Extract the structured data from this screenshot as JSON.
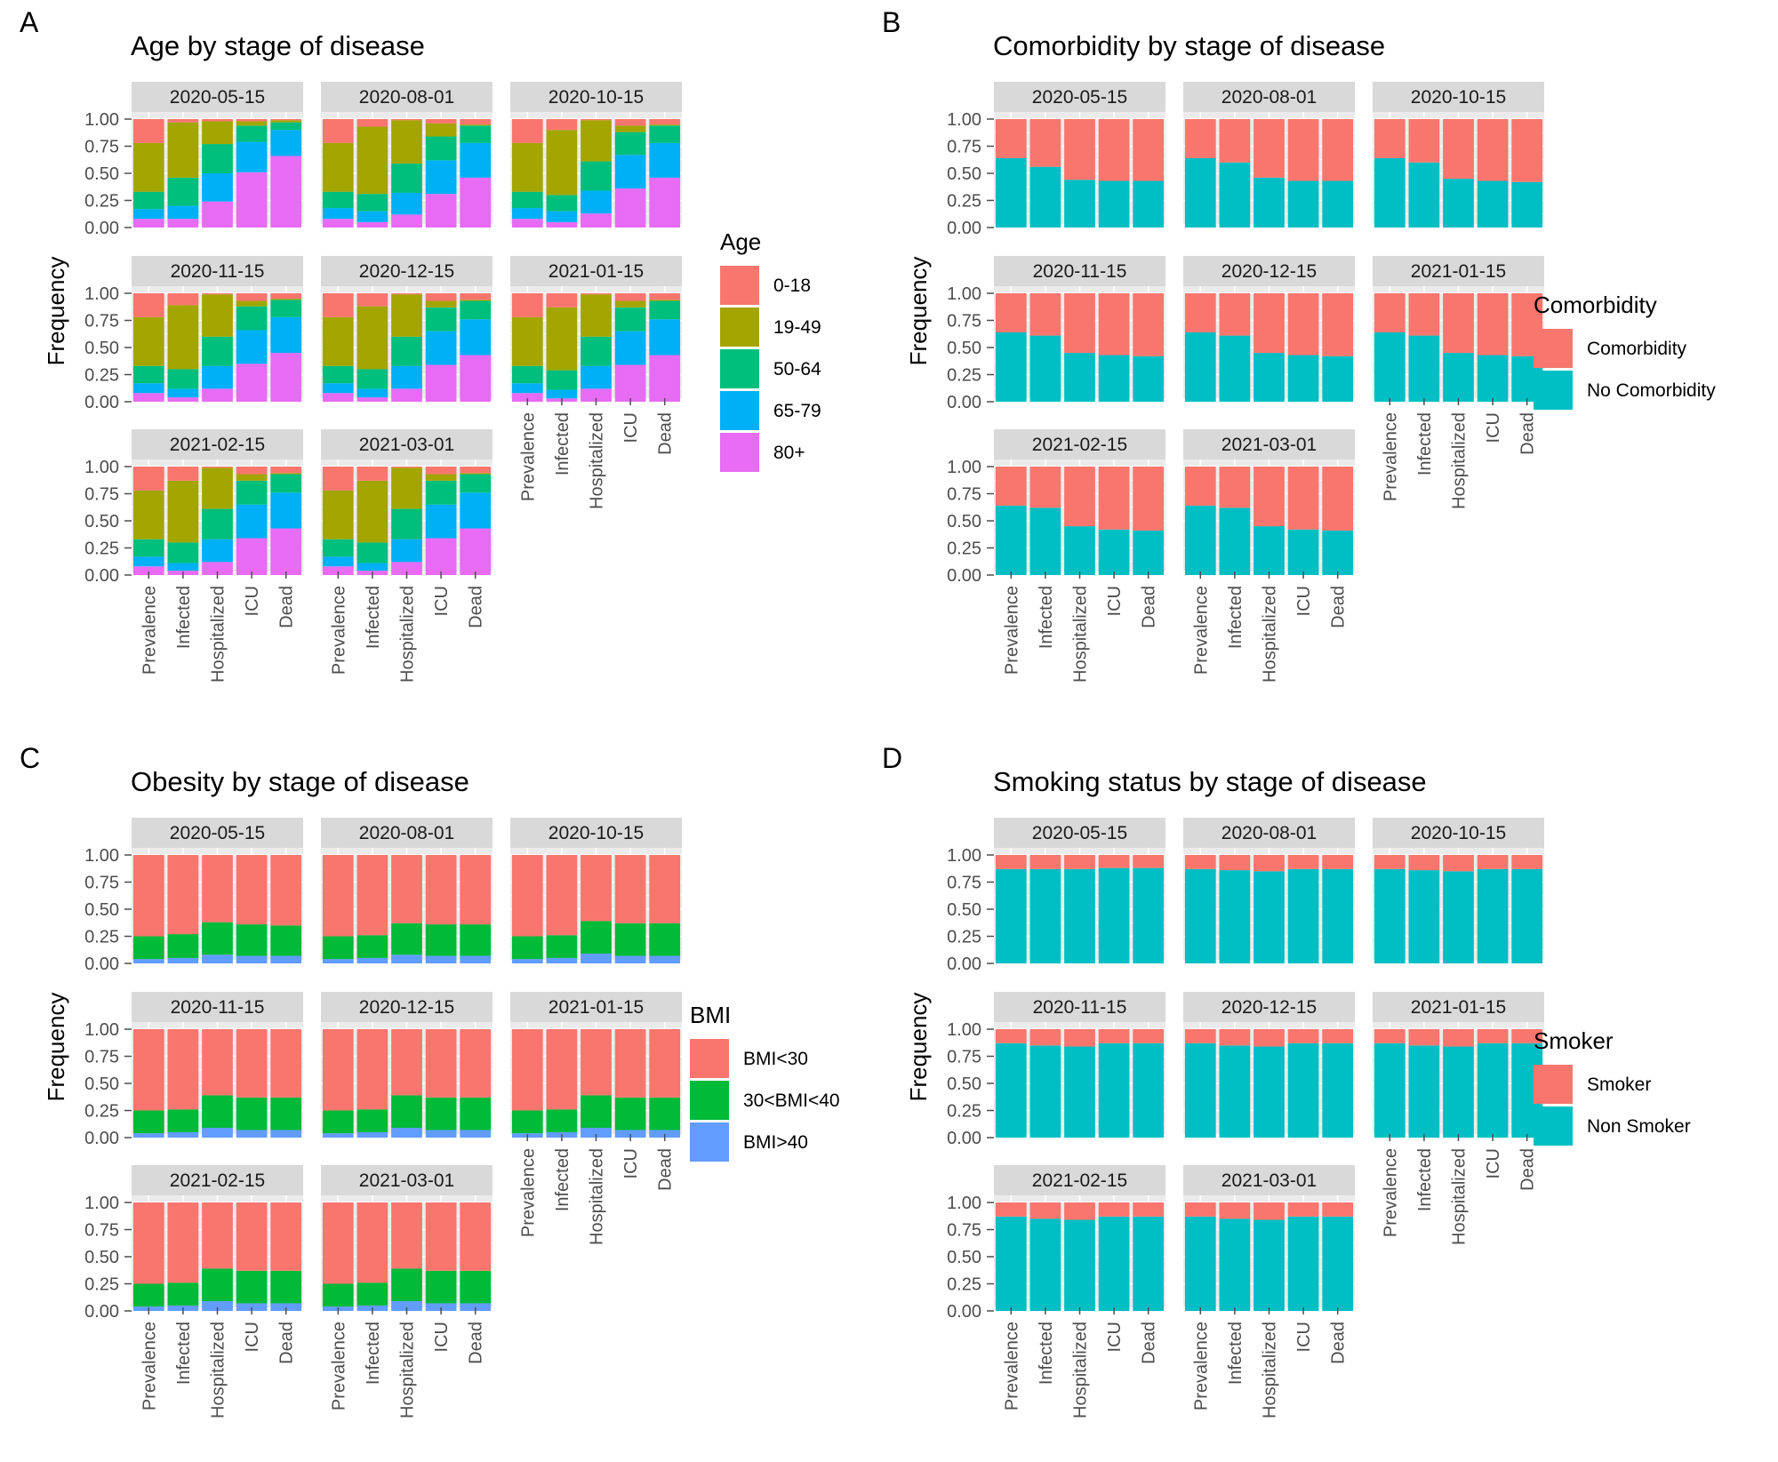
{
  "figure": {
    "ytick_labels": [
      "0.00",
      "0.25",
      "0.50",
      "0.75",
      "1.00"
    ],
    "strip_color": "#d9d9d9",
    "panel_bg": "#ebebeb"
  },
  "chart_data": [
    {
      "letter": "A",
      "type": "bar",
      "stacked": true,
      "title": "Age by stage of disease",
      "xlabel": "",
      "ylabel": "Frequency",
      "ylim": [
        0,
        1
      ],
      "grid": true,
      "legend_position": "right",
      "legend_title": "Age",
      "categories": [
        "Prevalence",
        "Infected",
        "Hospitalized",
        "ICU",
        "Dead"
      ],
      "series": [
        {
          "name": "0-18",
          "color": "#F8766D"
        },
        {
          "name": "19-49",
          "color": "#A3A500"
        },
        {
          "name": "50-64",
          "color": "#00BF7D"
        },
        {
          "name": "65-79",
          "color": "#00B0F6"
        },
        {
          "name": "80+",
          "color": "#E76BF3"
        }
      ],
      "facets": [
        {
          "date": "2020-05-15",
          "stacks": [
            [
              0.08,
              0.09,
              0.16,
              0.45,
              0.22
            ],
            [
              0.08,
              0.12,
              0.26,
              0.51,
              0.03
            ],
            [
              0.24,
              0.26,
              0.27,
              0.21,
              0.02
            ],
            [
              0.51,
              0.28,
              0.15,
              0.04,
              0.02
            ],
            [
              0.66,
              0.24,
              0.07,
              0.02,
              0.01
            ]
          ]
        },
        {
          "date": "2020-08-01",
          "stacks": [
            [
              0.08,
              0.1,
              0.15,
              0.45,
              0.22
            ],
            [
              0.05,
              0.1,
              0.16,
              0.62,
              0.07
            ],
            [
              0.12,
              0.2,
              0.27,
              0.4,
              0.01
            ],
            [
              0.31,
              0.31,
              0.22,
              0.12,
              0.04
            ],
            [
              0.46,
              0.32,
              0.16,
              0.01,
              0.05
            ]
          ]
        },
        {
          "date": "2020-10-15",
          "stacks": [
            [
              0.08,
              0.1,
              0.15,
              0.45,
              0.22
            ],
            [
              0.05,
              0.1,
              0.15,
              0.6,
              0.1
            ],
            [
              0.13,
              0.21,
              0.27,
              0.38,
              0.01
            ],
            [
              0.36,
              0.31,
              0.21,
              0.06,
              0.06
            ],
            [
              0.46,
              0.32,
              0.16,
              0.01,
              0.05
            ]
          ]
        },
        {
          "date": "2020-11-15",
          "stacks": [
            [
              0.08,
              0.09,
              0.16,
              0.45,
              0.22
            ],
            [
              0.04,
              0.08,
              0.18,
              0.59,
              0.11
            ],
            [
              0.12,
              0.21,
              0.27,
              0.39,
              0.01
            ],
            [
              0.35,
              0.31,
              0.22,
              0.05,
              0.07
            ],
            [
              0.45,
              0.33,
              0.16,
              0.01,
              0.05
            ]
          ]
        },
        {
          "date": "2020-12-15",
          "stacks": [
            [
              0.08,
              0.09,
              0.16,
              0.45,
              0.22
            ],
            [
              0.04,
              0.08,
              0.18,
              0.58,
              0.12
            ],
            [
              0.12,
              0.21,
              0.27,
              0.39,
              0.01
            ],
            [
              0.34,
              0.31,
              0.22,
              0.06,
              0.07
            ],
            [
              0.43,
              0.33,
              0.17,
              0.01,
              0.06
            ]
          ]
        },
        {
          "date": "2021-01-15",
          "stacks": [
            [
              0.08,
              0.09,
              0.16,
              0.45,
              0.22
            ],
            [
              0.03,
              0.08,
              0.18,
              0.58,
              0.13
            ],
            [
              0.12,
              0.21,
              0.27,
              0.39,
              0.01
            ],
            [
              0.34,
              0.31,
              0.22,
              0.06,
              0.07
            ],
            [
              0.43,
              0.33,
              0.17,
              0.01,
              0.06
            ]
          ]
        },
        {
          "date": "2021-02-15",
          "stacks": [
            [
              0.08,
              0.09,
              0.16,
              0.45,
              0.22
            ],
            [
              0.04,
              0.07,
              0.19,
              0.57,
              0.13
            ],
            [
              0.12,
              0.21,
              0.28,
              0.38,
              0.01
            ],
            [
              0.34,
              0.31,
              0.22,
              0.06,
              0.07
            ],
            [
              0.43,
              0.33,
              0.17,
              0.01,
              0.06
            ]
          ]
        },
        {
          "date": "2021-03-01",
          "stacks": [
            [
              0.08,
              0.09,
              0.16,
              0.45,
              0.22
            ],
            [
              0.04,
              0.07,
              0.19,
              0.57,
              0.13
            ],
            [
              0.12,
              0.21,
              0.28,
              0.38,
              0.01
            ],
            [
              0.34,
              0.31,
              0.22,
              0.06,
              0.07
            ],
            [
              0.43,
              0.33,
              0.17,
              0.01,
              0.06
            ]
          ]
        }
      ]
    },
    {
      "letter": "B",
      "type": "bar",
      "stacked": true,
      "title": "Comorbidity by stage of disease",
      "xlabel": "",
      "ylabel": "Frequency",
      "ylim": [
        0,
        1
      ],
      "grid": true,
      "legend_position": "right",
      "legend_title": "Comorbidity",
      "categories": [
        "Prevalence",
        "Infected",
        "Hospitalized",
        "ICU",
        "Dead"
      ],
      "series": [
        {
          "name": "Comorbidity",
          "color": "#F8766D"
        },
        {
          "name": "No Comorbidity",
          "color": "#00BFC4"
        }
      ],
      "facets": [
        {
          "date": "2020-05-15",
          "stacks": [
            [
              0.64,
              0.36
            ],
            [
              0.56,
              0.44
            ],
            [
              0.44,
              0.56
            ],
            [
              0.43,
              0.57
            ],
            [
              0.43,
              0.57
            ]
          ]
        },
        {
          "date": "2020-08-01",
          "stacks": [
            [
              0.64,
              0.36
            ],
            [
              0.6,
              0.4
            ],
            [
              0.46,
              0.54
            ],
            [
              0.43,
              0.57
            ],
            [
              0.43,
              0.57
            ]
          ]
        },
        {
          "date": "2020-10-15",
          "stacks": [
            [
              0.64,
              0.36
            ],
            [
              0.6,
              0.4
            ],
            [
              0.45,
              0.55
            ],
            [
              0.43,
              0.57
            ],
            [
              0.42,
              0.58
            ]
          ]
        },
        {
          "date": "2020-11-15",
          "stacks": [
            [
              0.64,
              0.36
            ],
            [
              0.61,
              0.39
            ],
            [
              0.45,
              0.55
            ],
            [
              0.43,
              0.57
            ],
            [
              0.42,
              0.58
            ]
          ]
        },
        {
          "date": "2020-12-15",
          "stacks": [
            [
              0.64,
              0.36
            ],
            [
              0.61,
              0.39
            ],
            [
              0.45,
              0.55
            ],
            [
              0.43,
              0.57
            ],
            [
              0.42,
              0.58
            ]
          ]
        },
        {
          "date": "2021-01-15",
          "stacks": [
            [
              0.64,
              0.36
            ],
            [
              0.61,
              0.39
            ],
            [
              0.45,
              0.55
            ],
            [
              0.43,
              0.57
            ],
            [
              0.42,
              0.58
            ]
          ]
        },
        {
          "date": "2021-02-15",
          "stacks": [
            [
              0.64,
              0.36
            ],
            [
              0.62,
              0.38
            ],
            [
              0.45,
              0.55
            ],
            [
              0.42,
              0.58
            ],
            [
              0.41,
              0.59
            ]
          ]
        },
        {
          "date": "2021-03-01",
          "stacks": [
            [
              0.64,
              0.36
            ],
            [
              0.62,
              0.38
            ],
            [
              0.45,
              0.55
            ],
            [
              0.42,
              0.58
            ],
            [
              0.41,
              0.59
            ]
          ]
        }
      ]
    },
    {
      "letter": "C",
      "type": "bar",
      "stacked": true,
      "title": "Obesity by stage of disease",
      "xlabel": "",
      "ylabel": "Frequency",
      "ylim": [
        0,
        1
      ],
      "grid": true,
      "legend_position": "right",
      "legend_title": "BMI",
      "categories": [
        "Prevalence",
        "Infected",
        "Hospitalized",
        "ICU",
        "Dead"
      ],
      "series": [
        {
          "name": "BMI<30",
          "color": "#F8766D"
        },
        {
          "name": "30<BMI<40",
          "color": "#00BA38"
        },
        {
          "name": "BMI>40",
          "color": "#619CFF"
        }
      ],
      "facets": [
        {
          "date": "2020-05-15",
          "stacks": [
            [
              0.04,
              0.21,
              0.75
            ],
            [
              0.05,
              0.22,
              0.73
            ],
            [
              0.08,
              0.3,
              0.62
            ],
            [
              0.07,
              0.29,
              0.64
            ],
            [
              0.07,
              0.28,
              0.65
            ]
          ]
        },
        {
          "date": "2020-08-01",
          "stacks": [
            [
              0.04,
              0.21,
              0.75
            ],
            [
              0.05,
              0.21,
              0.74
            ],
            [
              0.08,
              0.29,
              0.63
            ],
            [
              0.07,
              0.29,
              0.64
            ],
            [
              0.07,
              0.29,
              0.64
            ]
          ]
        },
        {
          "date": "2020-10-15",
          "stacks": [
            [
              0.04,
              0.21,
              0.75
            ],
            [
              0.05,
              0.21,
              0.74
            ],
            [
              0.09,
              0.3,
              0.61
            ],
            [
              0.07,
              0.3,
              0.63
            ],
            [
              0.07,
              0.3,
              0.63
            ]
          ]
        },
        {
          "date": "2020-11-15",
          "stacks": [
            [
              0.04,
              0.21,
              0.75
            ],
            [
              0.05,
              0.21,
              0.74
            ],
            [
              0.09,
              0.3,
              0.61
            ],
            [
              0.07,
              0.3,
              0.63
            ],
            [
              0.07,
              0.3,
              0.63
            ]
          ]
        },
        {
          "date": "2020-12-15",
          "stacks": [
            [
              0.04,
              0.21,
              0.75
            ],
            [
              0.05,
              0.21,
              0.74
            ],
            [
              0.09,
              0.3,
              0.61
            ],
            [
              0.07,
              0.3,
              0.63
            ],
            [
              0.07,
              0.3,
              0.63
            ]
          ]
        },
        {
          "date": "2021-01-15",
          "stacks": [
            [
              0.04,
              0.21,
              0.75
            ],
            [
              0.05,
              0.21,
              0.74
            ],
            [
              0.09,
              0.3,
              0.61
            ],
            [
              0.07,
              0.3,
              0.63
            ],
            [
              0.07,
              0.3,
              0.63
            ]
          ]
        },
        {
          "date": "2021-02-15",
          "stacks": [
            [
              0.04,
              0.21,
              0.75
            ],
            [
              0.05,
              0.21,
              0.74
            ],
            [
              0.09,
              0.3,
              0.61
            ],
            [
              0.07,
              0.3,
              0.63
            ],
            [
              0.07,
              0.3,
              0.63
            ]
          ]
        },
        {
          "date": "2021-03-01",
          "stacks": [
            [
              0.04,
              0.21,
              0.75
            ],
            [
              0.05,
              0.21,
              0.74
            ],
            [
              0.09,
              0.3,
              0.61
            ],
            [
              0.07,
              0.3,
              0.63
            ],
            [
              0.07,
              0.3,
              0.63
            ]
          ]
        }
      ]
    },
    {
      "letter": "D",
      "type": "bar",
      "stacked": true,
      "title": "Smoking status by stage of disease",
      "xlabel": "",
      "ylabel": "Frequency",
      "ylim": [
        0,
        1
      ],
      "grid": true,
      "legend_position": "right",
      "legend_title": "Smoker",
      "categories": [
        "Prevalence",
        "Infected",
        "Hospitalized",
        "ICU",
        "Dead"
      ],
      "series": [
        {
          "name": "Smoker",
          "color": "#F8766D"
        },
        {
          "name": "Non Smoker",
          "color": "#00BFC4"
        }
      ],
      "facets": [
        {
          "date": "2020-05-15",
          "stacks": [
            [
              0.87,
              0.13
            ],
            [
              0.87,
              0.13
            ],
            [
              0.87,
              0.13
            ],
            [
              0.88,
              0.12
            ],
            [
              0.88,
              0.12
            ]
          ]
        },
        {
          "date": "2020-08-01",
          "stacks": [
            [
              0.87,
              0.13
            ],
            [
              0.86,
              0.14
            ],
            [
              0.85,
              0.15
            ],
            [
              0.87,
              0.13
            ],
            [
              0.87,
              0.13
            ]
          ]
        },
        {
          "date": "2020-10-15",
          "stacks": [
            [
              0.87,
              0.13
            ],
            [
              0.86,
              0.14
            ],
            [
              0.85,
              0.15
            ],
            [
              0.87,
              0.13
            ],
            [
              0.87,
              0.13
            ]
          ]
        },
        {
          "date": "2020-11-15",
          "stacks": [
            [
              0.87,
              0.13
            ],
            [
              0.85,
              0.15
            ],
            [
              0.84,
              0.16
            ],
            [
              0.87,
              0.13
            ],
            [
              0.87,
              0.13
            ]
          ]
        },
        {
          "date": "2020-12-15",
          "stacks": [
            [
              0.87,
              0.13
            ],
            [
              0.85,
              0.15
            ],
            [
              0.84,
              0.16
            ],
            [
              0.87,
              0.13
            ],
            [
              0.87,
              0.13
            ]
          ]
        },
        {
          "date": "2021-01-15",
          "stacks": [
            [
              0.87,
              0.13
            ],
            [
              0.85,
              0.15
            ],
            [
              0.84,
              0.16
            ],
            [
              0.87,
              0.13
            ],
            [
              0.87,
              0.13
            ]
          ]
        },
        {
          "date": "2021-02-15",
          "stacks": [
            [
              0.87,
              0.13
            ],
            [
              0.85,
              0.15
            ],
            [
              0.84,
              0.16
            ],
            [
              0.87,
              0.13
            ],
            [
              0.87,
              0.13
            ]
          ]
        },
        {
          "date": "2021-03-01",
          "stacks": [
            [
              0.87,
              0.13
            ],
            [
              0.85,
              0.15
            ],
            [
              0.84,
              0.16
            ],
            [
              0.87,
              0.13
            ],
            [
              0.87,
              0.13
            ]
          ]
        }
      ]
    }
  ]
}
